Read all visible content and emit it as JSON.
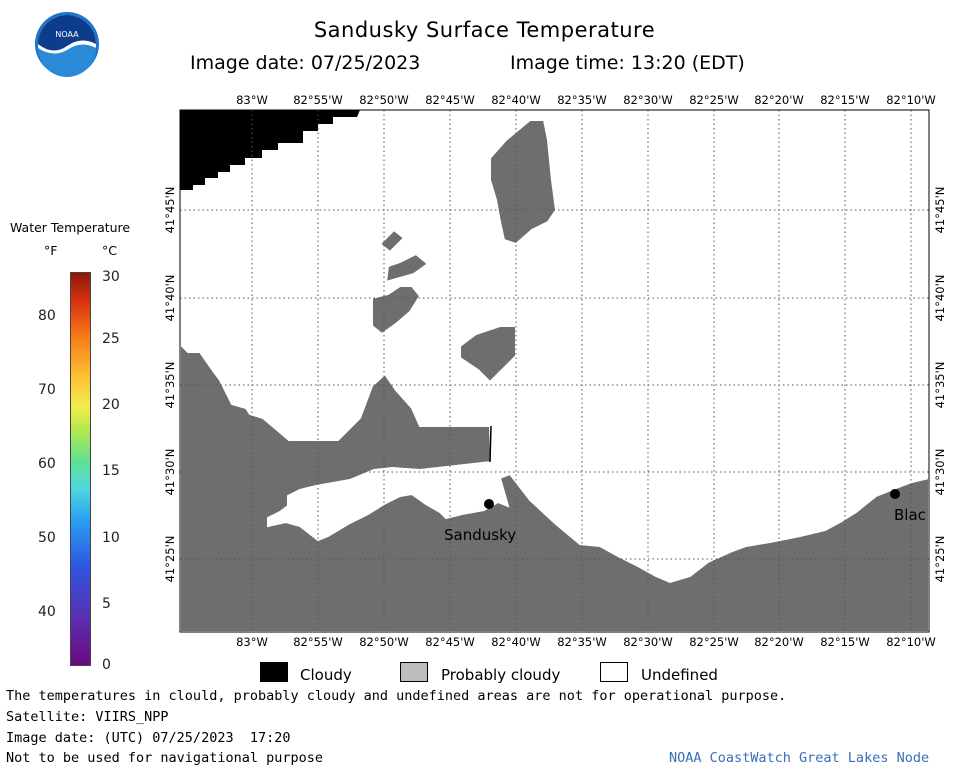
{
  "header": {
    "title": "Sandusky Surface Temperature",
    "image_date": "Image date: 07/25/2023",
    "image_time": "Image time: 13:20 (EDT)"
  },
  "logo": {
    "text": "NOAA",
    "icon": "noaa-logo-icon"
  },
  "colorbar": {
    "title": "Water Temperature",
    "unit_f": "°F",
    "unit_c": "°C",
    "ticks_f": [
      "80",
      "70",
      "60",
      "50",
      "40"
    ],
    "ticks_c": [
      "30",
      "25",
      "20",
      "15",
      "10",
      "5",
      "0"
    ]
  },
  "map": {
    "lon_labels": [
      "83°W",
      "82°55'W",
      "82°50'W",
      "82°45'W",
      "82°40'W",
      "82°35'W",
      "82°30'W",
      "82°25'W",
      "82°20'W",
      "82°15'W",
      "82°10'W"
    ],
    "lat_labels": [
      "41°45'N",
      "41°40'N",
      "41°35'N",
      "41°30'N",
      "41°25'N"
    ],
    "places": [
      "Sandusky",
      "Blac"
    ],
    "colors": {
      "cloudy": "#000000",
      "probably_cloudy": "#6e6e6e",
      "undefined": "#ffffff"
    }
  },
  "legend": {
    "cloudy": "Cloudy",
    "probably_cloudy": "Probably cloudy",
    "undefined": "Undefined"
  },
  "footer": {
    "disclaimer": "The temperatures in clould, probably cloudy and undefined areas are not for operational purpose.",
    "satellite": "Satellite: VIIRS_NPP",
    "utc_date": "Image date: (UTC) 07/25/2023  17:20",
    "nav_warning": "Not to be used for navigational purpose",
    "credit": "NOAA CoastWatch Great Lakes Node"
  }
}
